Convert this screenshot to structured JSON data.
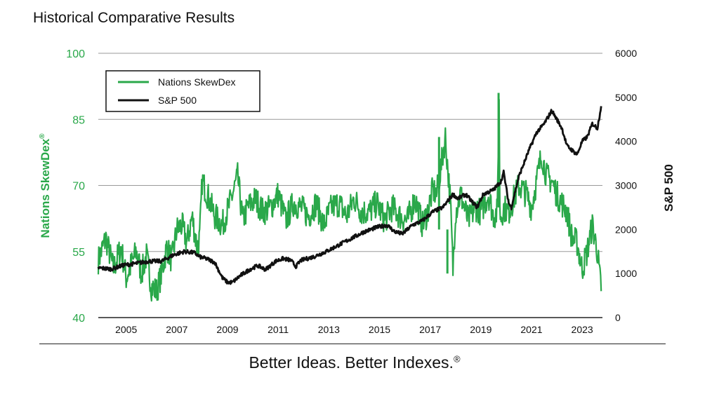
{
  "page": {
    "title": "Historical Comparative Results",
    "tagline": "Better Ideas.  Better Indexes.",
    "tagline_mark": "®"
  },
  "chart_data": {
    "type": "line",
    "title": "Historical Comparative Results",
    "xlabel": "",
    "x_ticks": [
      "2005",
      "2007",
      "2009",
      "2011",
      "2013",
      "2015",
      "2017",
      "2019",
      "2021",
      "2023"
    ],
    "x_range": [
      2004.0,
      2023.9
    ],
    "left_axis": {
      "label": "Nations SkewDex",
      "label_mark": "®",
      "ticks": [
        100,
        85,
        70,
        55,
        40
      ],
      "range": [
        40,
        100
      ],
      "color": "#2aa84a"
    },
    "right_axis": {
      "label": "S&P 500",
      "ticks": [
        6000,
        5000,
        4000,
        3000,
        2000,
        1000,
        0
      ],
      "range": [
        0,
        6000
      ],
      "color": "#111111"
    },
    "legend": {
      "placement": "top-left",
      "entries": [
        "Nations SkewDex",
        "S&P 500"
      ]
    },
    "series": [
      {
        "name": "Nations SkewDex",
        "axis": "left",
        "color": "#2aa84a",
        "x": [
          2004.0,
          2004.3,
          2004.6,
          2004.9,
          2005.1,
          2005.3,
          2005.5,
          2005.7,
          2005.9,
          2006.1,
          2006.3,
          2006.5,
          2006.7,
          2006.9,
          2007.1,
          2007.3,
          2007.5,
          2007.7,
          2007.9,
          2008.0,
          2008.1,
          2008.3,
          2008.6,
          2008.9,
          2009.2,
          2009.5,
          2009.7,
          2009.9,
          2010.2,
          2010.5,
          2010.8,
          2011.1,
          2011.4,
          2011.7,
          2012.0,
          2012.3,
          2012.6,
          2012.9,
          2013.2,
          2013.5,
          2013.8,
          2014.1,
          2014.4,
          2014.7,
          2015.0,
          2015.3,
          2015.6,
          2015.9,
          2016.2,
          2016.5,
          2016.8,
          2017.0,
          2017.2,
          2017.35,
          2017.5,
          2017.7,
          2017.9,
          2018.0,
          2018.1,
          2018.3,
          2018.6,
          2018.9,
          2019.1,
          2019.4,
          2019.6,
          2019.75,
          2019.82,
          2019.85,
          2019.9,
          2020.0,
          2020.2,
          2020.4,
          2020.6,
          2020.9,
          2021.1,
          2021.3,
          2021.5,
          2021.7,
          2021.9,
          2022.1,
          2022.3,
          2022.5,
          2022.7,
          2022.9,
          2023.1,
          2023.3,
          2023.5,
          2023.7,
          2023.85
        ],
        "y": [
          53,
          58,
          51,
          56,
          49,
          52,
          55,
          50,
          54,
          47,
          46,
          50,
          56,
          53,
          60,
          61,
          57,
          63,
          56,
          58,
          71,
          68,
          63,
          61,
          66,
          72,
          62,
          65,
          67,
          64,
          65,
          68,
          62,
          66,
          65,
          63,
          66,
          61,
          65,
          66,
          63,
          67,
          64,
          64,
          66,
          62,
          65,
          63,
          62,
          67,
          61,
          64,
          69,
          68,
          73,
          81,
          66,
          51,
          64,
          68,
          62,
          65,
          64,
          68,
          63,
          64,
          90,
          64,
          63,
          65,
          64,
          67,
          70,
          68,
          65,
          71,
          77,
          72,
          71,
          68,
          66,
          64,
          58,
          57,
          51,
          55,
          61,
          55,
          46
        ],
        "spikes": [
          {
            "x": 2017.45,
            "top": 81,
            "bottom": 60
          },
          {
            "x": 2017.78,
            "top": 60,
            "bottom": 50
          },
          {
            "x": 2019.8,
            "top": 91,
            "bottom": 65
          }
        ]
      },
      {
        "name": "S&P 500",
        "axis": "right",
        "color": "#111111",
        "x": [
          2004.0,
          2004.5,
          2005.0,
          2005.5,
          2006.0,
          2006.5,
          2007.0,
          2007.4,
          2007.8,
          2008.0,
          2008.3,
          2008.6,
          2008.9,
          2009.1,
          2009.3,
          2009.6,
          2010.0,
          2010.3,
          2010.6,
          2011.0,
          2011.3,
          2011.6,
          2011.8,
          2012.0,
          2012.5,
          2013.0,
          2013.5,
          2014.0,
          2014.5,
          2015.0,
          2015.4,
          2015.7,
          2016.0,
          2016.4,
          2016.8,
          2017.2,
          2017.6,
          2018.0,
          2018.2,
          2018.5,
          2018.95,
          2019.2,
          2019.6,
          2019.9,
          2020.0,
          2020.2,
          2020.3,
          2020.6,
          2021.0,
          2021.3,
          2021.6,
          2021.9,
          2022.1,
          2022.3,
          2022.5,
          2022.7,
          2022.9,
          2023.1,
          2023.3,
          2023.5,
          2023.7,
          2023.85
        ],
        "y": [
          1130,
          1100,
          1190,
          1230,
          1280,
          1280,
          1430,
          1500,
          1470,
          1380,
          1330,
          1250,
          900,
          800,
          800,
          950,
          1100,
          1180,
          1090,
          1280,
          1340,
          1300,
          1160,
          1300,
          1380,
          1500,
          1650,
          1800,
          1950,
          2050,
          2100,
          1950,
          1900,
          2100,
          2200,
          2400,
          2500,
          2800,
          2700,
          2800,
          2500,
          2800,
          2900,
          3100,
          3300,
          2600,
          2500,
          3200,
          3800,
          4200,
          4400,
          4700,
          4500,
          4300,
          3900,
          3800,
          3700,
          4000,
          4100,
          4400,
          4300,
          4800
        ]
      }
    ]
  }
}
